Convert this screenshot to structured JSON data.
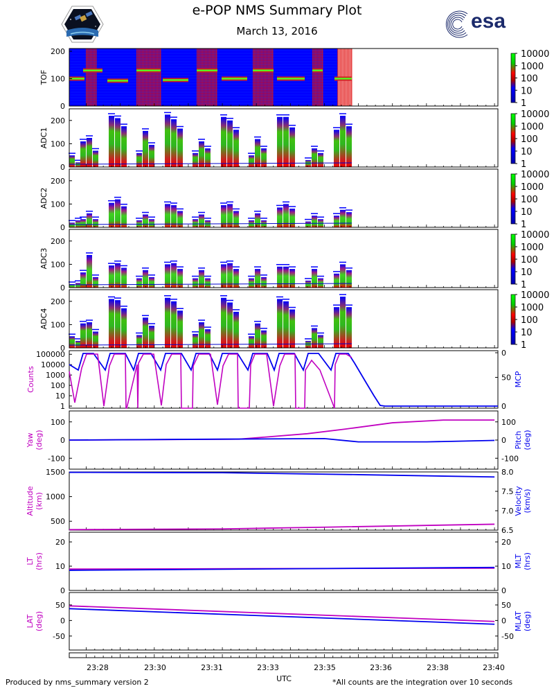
{
  "header": {
    "title": "e-POP NMS Summary Plot",
    "date": "March 13, 2016",
    "brand": "esa"
  },
  "footer": {
    "left": "Produced by nms_summary version 2",
    "right": "*All counts are the integration over 10 seconds"
  },
  "colors": {
    "magenta": "#c000c0",
    "blue": "#0000ee",
    "blue_bg": "#0000ff",
    "green": "#00cc00",
    "red": "#ee0000",
    "logo_navy": "#1b2a6b"
  },
  "chart_data": [
    {
      "type": "heatmap",
      "name": "TOF",
      "ylabel": "TOF",
      "ylim": [
        0,
        210
      ],
      "yticks": [
        0,
        100,
        200
      ],
      "data_end_time": "23:35.4",
      "band_centers": [
        100,
        130
      ],
      "colorbar": {
        "labels": [
          "10000",
          "1000",
          "100",
          "10",
          "1"
        ]
      }
    },
    {
      "type": "heatmap",
      "name": "ADC1",
      "ylabel": "ADC1",
      "ylim": [
        0,
        250
      ],
      "yticks": [
        0,
        100,
        200
      ],
      "colorbar": {
        "labels": [
          "10000",
          "1000",
          "100",
          "10",
          "1"
        ]
      },
      "groups": [
        [
          50,
          20,
          0
        ],
        [
          110,
          125,
          70
        ],
        [
          220,
          210,
          175
        ],
        [
          60,
          155,
          95
        ],
        [
          225,
          205,
          165
        ],
        [
          60,
          110,
          80
        ],
        [
          215,
          200,
          160
        ],
        [
          50,
          120,
          80
        ],
        [
          215,
          215,
          170
        ],
        [
          30,
          80,
          60
        ],
        [
          160,
          220,
          175
        ]
      ]
    },
    {
      "type": "heatmap",
      "name": "ADC2",
      "ylabel": "ADC2",
      "ylim": [
        0,
        250
      ],
      "yticks": [
        0,
        100,
        200
      ],
      "colorbar": {
        "labels": [
          "10000",
          "1000",
          "100",
          "10",
          "1"
        ]
      },
      "groups": [
        [
          20,
          30,
          0
        ],
        [
          35,
          60,
          35
        ],
        [
          105,
          120,
          90
        ],
        [
          30,
          55,
          35
        ],
        [
          100,
          95,
          70
        ],
        [
          35,
          55,
          30
        ],
        [
          95,
          100,
          70
        ],
        [
          30,
          60,
          30
        ],
        [
          85,
          100,
          80
        ],
        [
          25,
          50,
          35
        ],
        [
          50,
          75,
          65
        ]
      ]
    },
    {
      "type": "heatmap",
      "name": "ADC3",
      "ylabel": "ADC3",
      "ylim": [
        0,
        250
      ],
      "yticks": [
        0,
        100,
        200
      ],
      "colorbar": {
        "labels": [
          "10000",
          "1000",
          "100",
          "10",
          "1"
        ]
      },
      "groups": [
        [
          15,
          20,
          0
        ],
        [
          65,
          140,
          45
        ],
        [
          95,
          105,
          85
        ],
        [
          40,
          75,
          45
        ],
        [
          100,
          105,
          80
        ],
        [
          40,
          75,
          40
        ],
        [
          100,
          105,
          80
        ],
        [
          40,
          80,
          45
        ],
        [
          90,
          90,
          80
        ],
        [
          30,
          80,
          40
        ],
        [
          60,
          100,
          75
        ]
      ]
    },
    {
      "type": "heatmap",
      "name": "ADC4",
      "ylabel": "ADC4",
      "ylim": [
        0,
        250
      ],
      "yticks": [
        0,
        100,
        200
      ],
      "colorbar": {
        "labels": [
          "10000",
          "1000",
          "100",
          "10",
          "1"
        ]
      },
      "groups": [
        [
          50,
          30,
          0
        ],
        [
          105,
          110,
          70
        ],
        [
          210,
          205,
          170
        ],
        [
          55,
          130,
          95
        ],
        [
          215,
          200,
          160
        ],
        [
          60,
          110,
          80
        ],
        [
          215,
          195,
          155
        ],
        [
          50,
          105,
          75
        ],
        [
          210,
          200,
          165
        ],
        [
          30,
          85,
          55
        ],
        [
          175,
          220,
          175
        ]
      ]
    },
    {
      "type": "line",
      "name": "Counts / MCP",
      "ylabel_left": "Counts",
      "ylabel_right": "MCP",
      "yscale_left": "log",
      "yticks_left": [
        "100000",
        "10000",
        "1000",
        "100",
        "10",
        "1"
      ],
      "yticks_right": [
        "0",
        "50",
        "0"
      ],
      "series": [
        {
          "name": "Counts",
          "color": "#c000c0",
          "axis": "left",
          "style": "dips",
          "end": "23:35.4"
        },
        {
          "name": "MCP",
          "color": "#0000ee",
          "axis": "right",
          "style": "wave",
          "drop_time": "23:36.0"
        }
      ]
    },
    {
      "type": "line",
      "name": "Yaw / Pitch",
      "ylabel_left": [
        "Yaw",
        "(deg)"
      ],
      "ylabel_right": [
        "Pitch",
        "(deg)"
      ],
      "ylim": [
        -160,
        160
      ],
      "yticks_left": [
        -100,
        0,
        100
      ],
      "yticks_right": [
        -100,
        0,
        100
      ],
      "series": [
        {
          "name": "Yaw",
          "color": "#c000c0",
          "x": [
            "23:27.5",
            "23:32.5",
            "23:34.5",
            "23:35.6",
            "23:37.0",
            "23:38.5",
            "23:40.0"
          ],
          "y": [
            0,
            5,
            35,
            60,
            95,
            110,
            110
          ]
        },
        {
          "name": "Pitch",
          "color": "#0000ee",
          "x": [
            "23:27.5",
            "23:32.0",
            "23:35.0",
            "23:36.0",
            "23:38.0",
            "23:40.0"
          ],
          "y": [
            0,
            5,
            8,
            -10,
            -10,
            -2
          ]
        }
      ]
    },
    {
      "type": "line",
      "name": "Altitude / Velocity",
      "ylabel_left": [
        "Altitude",
        "(km)"
      ],
      "ylabel_right": [
        "Velocity",
        "(km/s)"
      ],
      "ylim_left": [
        320,
        1500
      ],
      "yticks_left": [
        500,
        1000,
        1500
      ],
      "ylim_right": [
        6.5,
        8.0
      ],
      "yticks_right": [
        "6.5",
        "7.0",
        "7.5",
        "8.0"
      ],
      "series": [
        {
          "name": "Altitude",
          "color": "#c000c0",
          "x": [
            "23:27.5",
            "23:32.0",
            "23:35.0",
            "23:40.0"
          ],
          "y": [
            330,
            345,
            380,
            440
          ]
        },
        {
          "name": "Velocity",
          "color": "#0000ee",
          "x": [
            "23:27.5",
            "23:32.0",
            "23:36.0",
            "23:40.0"
          ],
          "y": [
            7.99,
            7.98,
            7.93,
            7.87
          ]
        }
      ]
    },
    {
      "type": "line",
      "name": "LT / MLT",
      "ylabel_left": [
        "LT",
        "(hrs)"
      ],
      "ylabel_right": [
        "MLT",
        "(hrs)"
      ],
      "ylim": [
        0,
        24
      ],
      "yticks_left": [
        0,
        10,
        20
      ],
      "yticks_right": [
        0,
        10,
        20
      ],
      "series": [
        {
          "name": "LT",
          "color": "#c000c0",
          "x": [
            "23:27.5",
            "23:40.0"
          ],
          "y": [
            8.8,
            9.2
          ]
        },
        {
          "name": "MLT",
          "color": "#0000ee",
          "x": [
            "23:27.5",
            "23:40.0"
          ],
          "y": [
            8.3,
            9.5
          ]
        }
      ]
    },
    {
      "type": "line",
      "name": "LAT / MLAT",
      "ylabel_left": [
        "LAT",
        "(deg)"
      ],
      "ylabel_right": [
        "MLAT",
        "(deg)"
      ],
      "ylim": [
        -95,
        90
      ],
      "yticks_left": [
        -50,
        0,
        50
      ],
      "yticks_right": [
        -50,
        0,
        50
      ],
      "series": [
        {
          "name": "LAT",
          "color": "#c000c0",
          "x": [
            "23:27.5",
            "23:40.0"
          ],
          "y": [
            47,
            -3
          ]
        },
        {
          "name": "MLAT",
          "color": "#0000ee",
          "x": [
            "23:27.5",
            "23:40.0"
          ],
          "y": [
            38,
            -12
          ]
        }
      ]
    }
  ],
  "xaxis": {
    "label": "UTC",
    "ticks": [
      "23:28",
      "23:30",
      "23:31",
      "23:33",
      "23:35",
      "23:36",
      "23:38",
      "23:40"
    ]
  }
}
